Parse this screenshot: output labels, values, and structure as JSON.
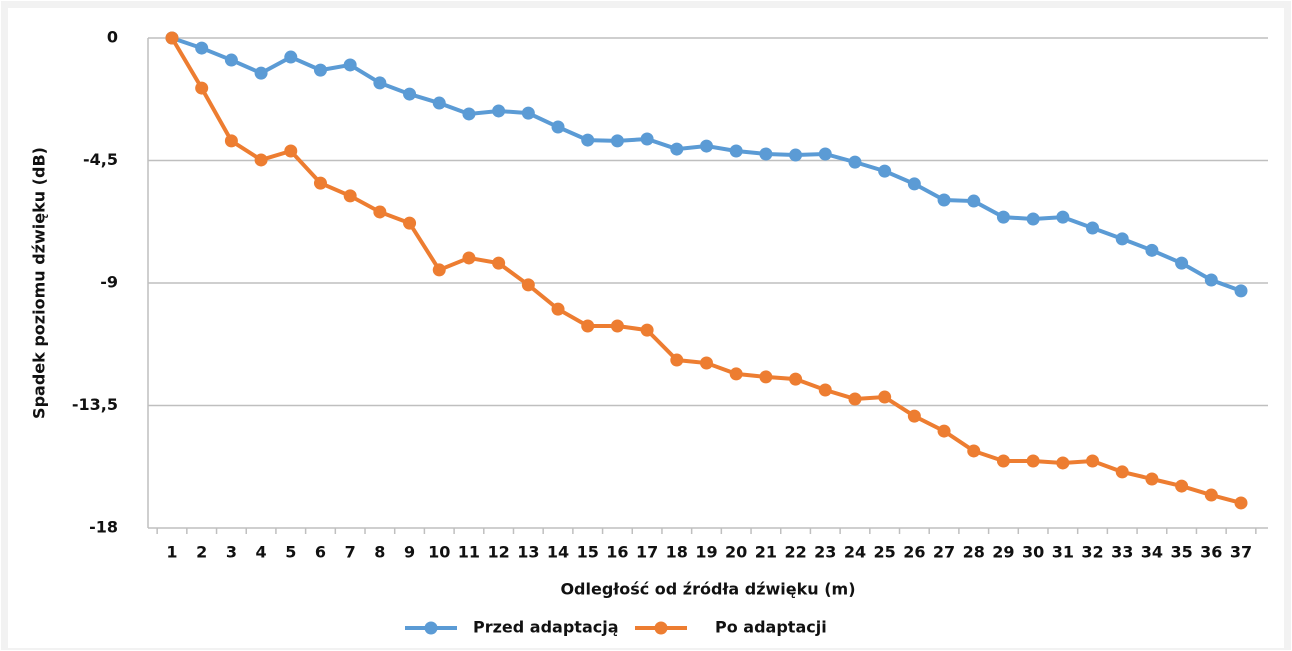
{
  "chart_data": {
    "type": "line",
    "x_label": "Odległość od źródła dźwięku (m)",
    "y_label": "Spadek poziomu dźwięku (dB)",
    "categories": [
      "1",
      "2",
      "3",
      "4",
      "5",
      "6",
      "7",
      "8",
      "9",
      "10",
      "11",
      "12",
      "13",
      "14",
      "15",
      "16",
      "17",
      "18",
      "19",
      "20",
      "21",
      "22",
      "23",
      "24",
      "25",
      "26",
      "27",
      "28",
      "29",
      "30",
      "31",
      "32",
      "33",
      "34",
      "35",
      "36",
      "37"
    ],
    "ylim": [
      -18,
      0
    ],
    "yticks": [
      {
        "value": 0,
        "label": "0"
      },
      {
        "value": -4.5,
        "label": "-4,5"
      },
      {
        "value": -9,
        "label": "-9"
      },
      {
        "value": -13.5,
        "label": "-13,5"
      },
      {
        "value": -18,
        "label": "-18"
      }
    ],
    "grid": true,
    "legend": "bottom",
    "series": [
      {
        "name": "Przed adaptacją",
        "color": "#5b9bd5",
        "values": [
          0,
          -0.37,
          -0.81,
          -1.29,
          -0.7,
          -1.18,
          -0.99,
          -1.65,
          -2.06,
          -2.39,
          -2.79,
          -2.68,
          -2.76,
          -3.27,
          -3.75,
          -3.78,
          -3.71,
          -4.08,
          -3.97,
          -4.15,
          -4.26,
          -4.3,
          -4.26,
          -4.56,
          -4.89,
          -5.36,
          -5.95,
          -5.99,
          -6.58,
          -6.65,
          -6.58,
          -6.98,
          -7.38,
          -7.8,
          -8.27,
          -8.89,
          -9.29
        ]
      },
      {
        "name": "Po adaptacji",
        "color": "#ed7d31",
        "values": [
          0,
          -1.84,
          -3.78,
          -4.48,
          -4.15,
          -5.33,
          -5.8,
          -6.39,
          -6.8,
          -8.52,
          -8.08,
          -8.27,
          -9.07,
          -9.96,
          -10.58,
          -10.58,
          -10.73,
          -11.83,
          -11.94,
          -12.34,
          -12.45,
          -12.53,
          -12.93,
          -13.26,
          -13.19,
          -13.89,
          -14.44,
          -15.17,
          -15.54,
          -15.54,
          -15.61,
          -15.54,
          -15.94,
          -16.2,
          -16.46,
          -16.79,
          -17.08
        ]
      }
    ]
  }
}
